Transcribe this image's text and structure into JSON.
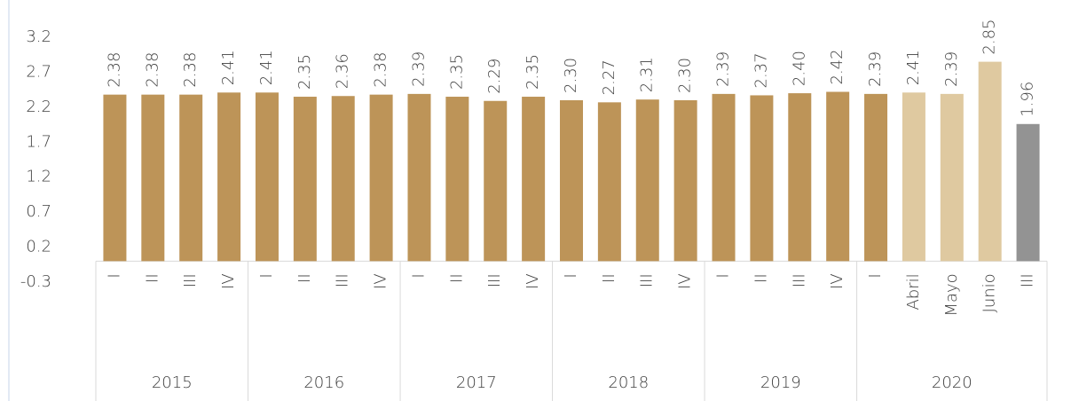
{
  "chart_data": {
    "type": "bar",
    "groups": [
      {
        "label": "2015",
        "categories": [
          "I",
          "II",
          "III",
          "IV"
        ]
      },
      {
        "label": "2016",
        "categories": [
          "I",
          "II",
          "III",
          "IV"
        ]
      },
      {
        "label": "2017",
        "categories": [
          "I",
          "II",
          "III",
          "IV"
        ]
      },
      {
        "label": "2018",
        "categories": [
          "I",
          "II",
          "III",
          "IV"
        ]
      },
      {
        "label": "2019",
        "categories": [
          "I",
          "II",
          "III",
          "IV"
        ]
      },
      {
        "label": "2020",
        "categories": [
          "I",
          "Abril",
          "Mayo",
          "Junio",
          "III"
        ]
      }
    ],
    "values": [
      2.38,
      2.38,
      2.38,
      2.41,
      2.41,
      2.35,
      2.36,
      2.38,
      2.39,
      2.35,
      2.29,
      2.35,
      2.3,
      2.27,
      2.31,
      2.3,
      2.39,
      2.37,
      2.4,
      2.42,
      2.39,
      2.41,
      2.39,
      2.85,
      1.96
    ],
    "value_labels": [
      "2.38",
      "2.38",
      "2.38",
      "2.41",
      "2.41",
      "2.35",
      "2.36",
      "2.38",
      "2.39",
      "2.35",
      "2.29",
      "2.35",
      "2.30",
      "2.27",
      "2.31",
      "2.30",
      "2.39",
      "2.37",
      "2.40",
      "2.42",
      "2.39",
      "2.41",
      "2.39",
      "2.85",
      "1.96"
    ],
    "colors": [
      "#bd9458",
      "#bd9458",
      "#bd9458",
      "#bd9458",
      "#bd9458",
      "#bd9458",
      "#bd9458",
      "#bd9458",
      "#bd9458",
      "#bd9458",
      "#bd9458",
      "#bd9458",
      "#bd9458",
      "#bd9458",
      "#bd9458",
      "#bd9458",
      "#bd9458",
      "#bd9458",
      "#bd9458",
      "#bd9458",
      "#bd9458",
      "#dfc9a0",
      "#dfc9a0",
      "#dfc9a0",
      "#939393"
    ],
    "ylim": [
      -0.3,
      3.2
    ],
    "yticks": [
      -0.3,
      0.2,
      0.7,
      1.2,
      1.7,
      2.2,
      2.7,
      3.2
    ]
  }
}
